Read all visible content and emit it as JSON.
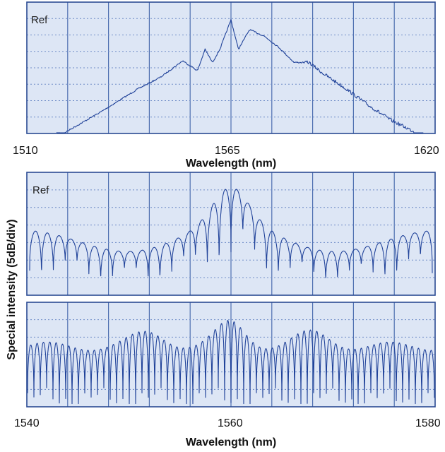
{
  "chart_data": [
    {
      "type": "line",
      "panel": "top",
      "xlabel": "Wavelength (nm)",
      "x_ticks": [
        "1510",
        "1565",
        "1620"
      ],
      "xlim": [
        1510,
        1620
      ],
      "ref_label": "Ref",
      "y_scale": "5dB/div",
      "grid": true,
      "envelope": {
        "x": [
          1520,
          1530,
          1540,
          1546,
          1552,
          1556,
          1558,
          1560,
          1562,
          1565,
          1567,
          1570,
          1574,
          1578,
          1582,
          1586,
          1590,
          1596,
          1602,
          1608,
          1616
        ],
        "y_div_below_ref": [
          6.9,
          5.6,
          4.2,
          3.5,
          2.5,
          3.1,
          1.8,
          2.6,
          1.8,
          0.0,
          1.8,
          0.6,
          1.0,
          1.7,
          2.6,
          2.6,
          3.3,
          4.2,
          5.2,
          6.1,
          7.0
        ]
      }
    },
    {
      "type": "line",
      "panel": "middle",
      "ref_label": "Ref",
      "xlim": [
        1540,
        1580
      ],
      "grid": true,
      "description_values": {
        "fringe_count": 34,
        "peak_x": 1560
      }
    },
    {
      "type": "line",
      "panel": "bottom",
      "xlabel": "Wavelength (nm)",
      "x_ticks": [
        "1540",
        "1560",
        "1580"
      ],
      "xlim": [
        1540,
        1580
      ],
      "grid": true,
      "description_values": {
        "fringe_count": 64,
        "lobe_centers": [
          1546,
          1552,
          1560,
          1568,
          1575
        ]
      }
    }
  ],
  "shared_ylabel": "Special intensity (5dB/div)",
  "colors": {
    "trace": "#21439a",
    "panel_background": "#dde6f5",
    "grid": "#4e6fb0"
  }
}
